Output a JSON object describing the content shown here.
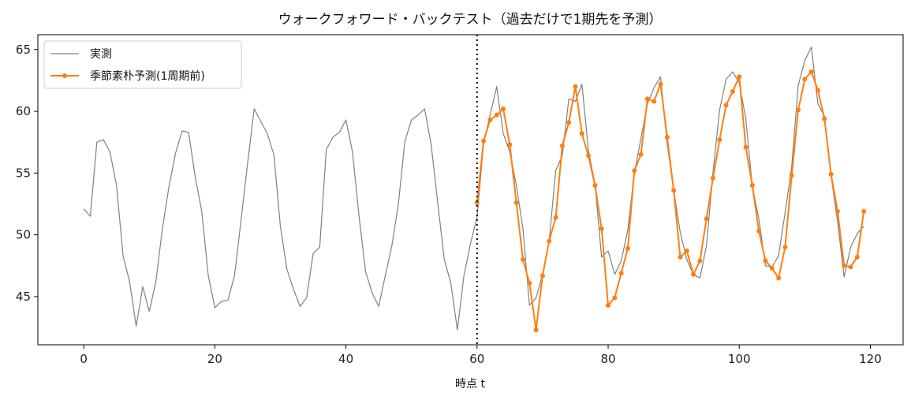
{
  "chart_data": {
    "type": "line",
    "title": "ウォークフォワード・バックテスト（過去だけで1期先を予測）",
    "xlabel": "時点 t",
    "ylabel": "",
    "xlim": [
      -7,
      125
    ],
    "ylim": [
      41.1,
      66.2
    ],
    "x_ticks": [
      0,
      20,
      40,
      60,
      80,
      100,
      120
    ],
    "y_ticks": [
      45,
      50,
      55,
      60,
      65
    ],
    "grid": false,
    "legend_position": "top-left",
    "vline": {
      "x": 60,
      "style": "dotted",
      "color": "#000000"
    },
    "series": [
      {
        "name": "実測",
        "color": "#808080",
        "marker": false,
        "x_start": 0,
        "values": [
          52.1,
          51.5,
          57.5,
          57.7,
          56.7,
          54.0,
          48.3,
          46.2,
          42.6,
          45.8,
          43.8,
          46.2,
          50.5,
          53.9,
          56.6,
          58.4,
          58.3,
          54.7,
          51.9,
          46.7,
          44.1,
          44.6,
          44.7,
          46.7,
          51.2,
          55.8,
          60.2,
          59.2,
          58.2,
          56.5,
          50.7,
          47.2,
          45.6,
          44.2,
          44.9,
          48.5,
          49.0,
          56.9,
          57.9,
          58.3,
          59.3,
          56.7,
          51.5,
          47.0,
          45.3,
          44.2,
          46.7,
          49.1,
          52.5,
          57.6,
          59.3,
          59.7,
          60.2,
          57.3,
          52.6,
          48.0,
          46.1,
          42.3,
          46.7,
          49.3,
          51.4,
          57.4,
          59.7,
          62.0,
          58.2,
          56.7,
          54.0,
          50.5,
          44.3,
          44.9,
          46.8,
          49.5,
          55.2,
          56.4,
          61.0,
          60.8,
          62.2,
          56.8,
          54.1,
          48.2,
          48.7,
          46.8,
          47.9,
          50.4,
          55.0,
          57.8,
          60.6,
          61.9,
          62.8,
          57.4,
          53.6,
          50.2,
          48.0,
          46.8,
          46.5,
          49.1,
          55.1,
          60.1,
          62.6,
          63.2,
          62.3,
          59.4,
          53.9,
          51.3,
          47.5,
          47.4,
          48.3,
          51.8,
          55.5,
          62.1,
          64.1,
          65.2,
          60.6,
          59.6,
          54.8,
          51.1,
          46.6,
          49.0,
          50.1,
          50.7
        ]
      },
      {
        "name": "季節素朴予測(1周期前)",
        "color": "#ff7f0e",
        "marker": true,
        "x_start": 60,
        "values": [
          52.6,
          57.6,
          59.3,
          59.7,
          60.2,
          57.3,
          52.6,
          48.0,
          46.1,
          42.3,
          46.7,
          49.5,
          51.4,
          57.2,
          59.1,
          62.0,
          58.2,
          56.4,
          54.0,
          50.5,
          44.3,
          44.9,
          46.9,
          48.9,
          55.2,
          56.5,
          61.0,
          60.8,
          62.2,
          57.9,
          53.6,
          48.2,
          48.7,
          46.8,
          47.9,
          51.3,
          54.6,
          57.7,
          60.5,
          61.6,
          62.8,
          57.1,
          54.0,
          50.3,
          47.9,
          47.3,
          46.5,
          49.0,
          54.8,
          60.1,
          62.6,
          63.2,
          61.7,
          59.4,
          54.9,
          51.9,
          47.5,
          47.4,
          48.2,
          51.9
        ]
      }
    ]
  }
}
